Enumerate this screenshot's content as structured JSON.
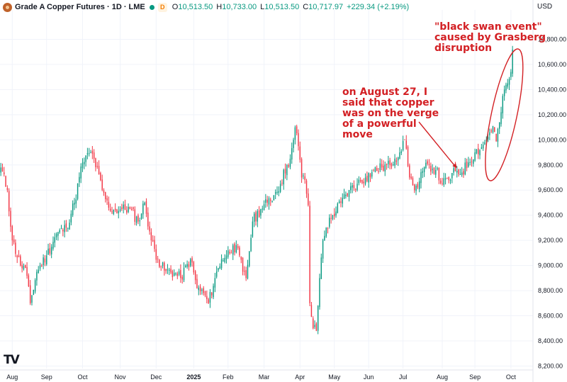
{
  "header": {
    "title": "Grade A Copper Futures · 1D · LME",
    "open_label": "O",
    "open": "10,513.50",
    "high_label": "H",
    "high": "10,733.00",
    "low_label": "L",
    "low": "10,513.50",
    "close_label": "C",
    "close": "10,717.97",
    "change": "+229.34 (+2.19%)",
    "badge": "D"
  },
  "currency": "USD",
  "watermark": "TV",
  "annotations": {
    "left": "on August 27, I\nsaid that copper\nwas on the verge\nof a powerful\nmove",
    "right": "\"black swan event\"\ncaused by Grasberg\ndisruption"
  },
  "colors": {
    "up": "#089981",
    "down": "#f23645",
    "annotation": "#d32024"
  },
  "chart_data": {
    "type": "candlestick",
    "title": "Grade A Copper Futures · 1D · LME",
    "ylim": [
      8180,
      11000
    ],
    "y_ticks": [
      8200,
      8400,
      8600,
      8800,
      9000,
      9200,
      9400,
      9600,
      9800,
      10000,
      10200,
      10400,
      10600,
      10800
    ],
    "y_tick_labels": [
      "8,200.00",
      "8,400.00",
      "8,600.00",
      "8,800.00",
      "9,000.00",
      "9,200.00",
      "9,400.00",
      "9,600.00",
      "9,800.00",
      "10,000.00",
      "10,200.00",
      "10,400.00",
      "10,600.00",
      "10,800.00"
    ],
    "x_tick_labels": [
      "Aug",
      "Sep",
      "Oct",
      "Nov",
      "Dec",
      "2025",
      "Feb",
      "Mar",
      "Apr",
      "May",
      "Jun",
      "Jul",
      "Aug",
      "Sep",
      "Oct"
    ],
    "x_tick_index": [
      7,
      28,
      50,
      73,
      95,
      118,
      139,
      161,
      183,
      204,
      225,
      246,
      270,
      290,
      312
    ],
    "num_bars": 325,
    "grid": true,
    "close_anchors": [
      [
        0,
        9780
      ],
      [
        4,
        9600
      ],
      [
        7,
        9200
      ],
      [
        12,
        9000
      ],
      [
        15,
        8980
      ],
      [
        18,
        8700
      ],
      [
        22,
        8950
      ],
      [
        28,
        9080
      ],
      [
        34,
        9250
      ],
      [
        40,
        9300
      ],
      [
        45,
        9500
      ],
      [
        50,
        9820
      ],
      [
        55,
        9900
      ],
      [
        57,
        9850
      ],
      [
        62,
        9600
      ],
      [
        66,
        9460
      ],
      [
        70,
        9440
      ],
      [
        74,
        9450
      ],
      [
        79,
        9450
      ],
      [
        84,
        9350
      ],
      [
        88,
        9500
      ],
      [
        92,
        9200
      ],
      [
        96,
        9050
      ],
      [
        100,
        8960
      ],
      [
        106,
        8940
      ],
      [
        110,
        8900
      ],
      [
        116,
        9050
      ],
      [
        120,
        8820
      ],
      [
        124,
        8780
      ],
      [
        127,
        8700
      ],
      [
        131,
        8900
      ],
      [
        135,
        9050
      ],
      [
        138,
        9080
      ],
      [
        142,
        9160
      ],
      [
        146,
        9080
      ],
      [
        148,
        8950
      ],
      [
        150,
        8900
      ],
      [
        154,
        9350
      ],
      [
        159,
        9450
      ],
      [
        163,
        9500
      ],
      [
        167,
        9560
      ],
      [
        171,
        9650
      ],
      [
        175,
        9800
      ],
      [
        177,
        9850
      ],
      [
        179,
        10000
      ],
      [
        180,
        10100
      ],
      [
        182,
        9950
      ],
      [
        184,
        9700
      ],
      [
        186,
        9680
      ],
      [
        188,
        9480
      ],
      [
        189,
        8700
      ],
      [
        191,
        8500
      ],
      [
        193,
        8480
      ],
      [
        195,
        8900
      ],
      [
        197,
        9200
      ],
      [
        199,
        9300
      ],
      [
        203,
        9400
      ],
      [
        208,
        9500
      ],
      [
        213,
        9600
      ],
      [
        218,
        9650
      ],
      [
        223,
        9700
      ],
      [
        228,
        9750
      ],
      [
        233,
        9780
      ],
      [
        238,
        9800
      ],
      [
        241,
        9850
      ],
      [
        244,
        9900
      ],
      [
        246,
        9990
      ],
      [
        248,
        9930
      ],
      [
        250,
        9700
      ],
      [
        252,
        9640
      ],
      [
        255,
        9620
      ],
      [
        258,
        9750
      ],
      [
        262,
        9800
      ],
      [
        266,
        9760
      ],
      [
        270,
        9650
      ],
      [
        274,
        9680
      ],
      [
        278,
        9750
      ],
      [
        282,
        9740
      ],
      [
        286,
        9820
      ],
      [
        290,
        9900
      ],
      [
        294,
        9940
      ],
      [
        297,
        10000
      ],
      [
        299,
        10060
      ],
      [
        301,
        10110
      ],
      [
        303,
        9990
      ],
      [
        306,
        10220
      ],
      [
        308,
        10400
      ],
      [
        310,
        10450
      ],
      [
        312,
        10540
      ],
      [
        313,
        10717.97
      ]
    ],
    "annotation_points": {
      "arrow_target_bar": 279,
      "ellipse_center_bar": 307
    }
  }
}
